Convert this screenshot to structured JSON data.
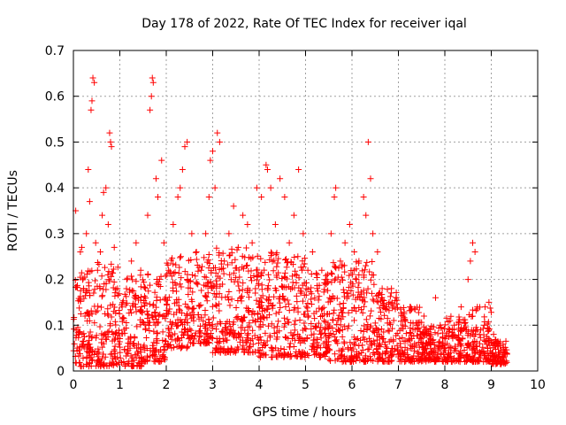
{
  "chart_data": {
    "type": "scatter",
    "title": "Day 178 of 2022, Rate Of TEC Index for receiver iqal",
    "xlabel": "GPS time / hours",
    "ylabel": "ROTI / TECUs",
    "xlim": [
      0,
      10
    ],
    "ylim": [
      0,
      0.7
    ],
    "xticks": [
      0,
      1,
      2,
      3,
      4,
      5,
      6,
      7,
      8,
      9,
      10
    ],
    "xtick_labels": [
      "0",
      "1",
      "2",
      "3",
      "4",
      "5",
      "6",
      "7",
      "8",
      "9",
      "10"
    ],
    "yticks": [
      0,
      0.1,
      0.2,
      0.3,
      0.4,
      0.5,
      0.6,
      0.7
    ],
    "ytick_labels": [
      "0",
      "0.1",
      "0.2",
      "0.3",
      "0.4",
      "0.5",
      "0.6",
      "0.7"
    ],
    "grid": true,
    "marker": "+",
    "color": "#ff0000",
    "points": [
      [
        0.05,
        0.35
      ],
      [
        0.08,
        0.05
      ],
      [
        0.12,
        0.08
      ],
      [
        0.15,
        0.26
      ],
      [
        0.18,
        0.27
      ],
      [
        0.22,
        0.18
      ],
      [
        0.25,
        0.12
      ],
      [
        0.28,
        0.3
      ],
      [
        0.32,
        0.44
      ],
      [
        0.35,
        0.37
      ],
      [
        0.38,
        0.57
      ],
      [
        0.4,
        0.59
      ],
      [
        0.42,
        0.64
      ],
      [
        0.45,
        0.63
      ],
      [
        0.48,
        0.28
      ],
      [
        0.52,
        0.22
      ],
      [
        0.58,
        0.26
      ],
      [
        0.62,
        0.34
      ],
      [
        0.65,
        0.39
      ],
      [
        0.7,
        0.4
      ],
      [
        0.75,
        0.32
      ],
      [
        0.78,
        0.52
      ],
      [
        0.8,
        0.5
      ],
      [
        0.82,
        0.49
      ],
      [
        0.88,
        0.27
      ],
      [
        0.95,
        0.18
      ],
      [
        1.05,
        0.14
      ],
      [
        1.15,
        0.2
      ],
      [
        1.25,
        0.24
      ],
      [
        1.35,
        0.28
      ],
      [
        1.45,
        0.22
      ],
      [
        1.55,
        0.18
      ],
      [
        1.6,
        0.34
      ],
      [
        1.65,
        0.57
      ],
      [
        1.68,
        0.6
      ],
      [
        1.7,
        0.64
      ],
      [
        1.72,
        0.63
      ],
      [
        1.78,
        0.42
      ],
      [
        1.82,
        0.38
      ],
      [
        1.9,
        0.46
      ],
      [
        1.95,
        0.28
      ],
      [
        2.05,
        0.22
      ],
      [
        2.15,
        0.32
      ],
      [
        2.25,
        0.38
      ],
      [
        2.3,
        0.4
      ],
      [
        2.35,
        0.44
      ],
      [
        2.4,
        0.49
      ],
      [
        2.45,
        0.5
      ],
      [
        2.55,
        0.3
      ],
      [
        2.65,
        0.26
      ],
      [
        2.75,
        0.22
      ],
      [
        2.85,
        0.3
      ],
      [
        2.92,
        0.38
      ],
      [
        2.95,
        0.46
      ],
      [
        3.0,
        0.48
      ],
      [
        3.05,
        0.4
      ],
      [
        3.1,
        0.52
      ],
      [
        3.15,
        0.5
      ],
      [
        3.25,
        0.24
      ],
      [
        3.35,
        0.3
      ],
      [
        3.45,
        0.36
      ],
      [
        3.55,
        0.27
      ],
      [
        3.65,
        0.34
      ],
      [
        3.75,
        0.32
      ],
      [
        3.85,
        0.28
      ],
      [
        3.95,
        0.4
      ],
      [
        4.05,
        0.38
      ],
      [
        4.15,
        0.45
      ],
      [
        4.18,
        0.44
      ],
      [
        4.25,
        0.4
      ],
      [
        4.35,
        0.32
      ],
      [
        4.45,
        0.42
      ],
      [
        4.55,
        0.38
      ],
      [
        4.65,
        0.28
      ],
      [
        4.75,
        0.34
      ],
      [
        4.85,
        0.44
      ],
      [
        4.95,
        0.3
      ],
      [
        5.05,
        0.22
      ],
      [
        5.15,
        0.26
      ],
      [
        5.25,
        0.18
      ],
      [
        5.35,
        0.22
      ],
      [
        5.45,
        0.2
      ],
      [
        5.55,
        0.3
      ],
      [
        5.62,
        0.38
      ],
      [
        5.65,
        0.4
      ],
      [
        5.75,
        0.24
      ],
      [
        5.85,
        0.28
      ],
      [
        5.95,
        0.32
      ],
      [
        6.05,
        0.26
      ],
      [
        6.15,
        0.24
      ],
      [
        6.25,
        0.38
      ],
      [
        6.3,
        0.34
      ],
      [
        6.35,
        0.5
      ],
      [
        6.4,
        0.42
      ],
      [
        6.45,
        0.3
      ],
      [
        6.55,
        0.26
      ],
      [
        6.65,
        0.18
      ],
      [
        6.75,
        0.14
      ],
      [
        6.85,
        0.18
      ],
      [
        6.95,
        0.16
      ],
      [
        7.1,
        0.12
      ],
      [
        7.25,
        0.14
      ],
      [
        7.4,
        0.1
      ],
      [
        7.55,
        0.12
      ],
      [
        7.7,
        0.08
      ],
      [
        7.8,
        0.16
      ],
      [
        7.9,
        0.1
      ],
      [
        8.05,
        0.06
      ],
      [
        8.2,
        0.1
      ],
      [
        8.35,
        0.14
      ],
      [
        8.5,
        0.2
      ],
      [
        8.55,
        0.24
      ],
      [
        8.6,
        0.28
      ],
      [
        8.65,
        0.26
      ],
      [
        8.7,
        0.14
      ],
      [
        8.85,
        0.1
      ],
      [
        8.95,
        0.15
      ],
      [
        9.05,
        0.08
      ],
      [
        9.15,
        0.06
      ],
      [
        9.3,
        0.04
      ]
    ],
    "density_bands": [
      [
        0.0,
        0.5,
        0.01,
        0.22
      ],
      [
        0.5,
        1.0,
        0.01,
        0.24
      ],
      [
        1.0,
        1.5,
        0.01,
        0.21
      ],
      [
        1.5,
        2.0,
        0.02,
        0.22
      ],
      [
        2.0,
        2.5,
        0.05,
        0.26
      ],
      [
        2.5,
        3.0,
        0.06,
        0.26
      ],
      [
        3.0,
        3.5,
        0.04,
        0.27
      ],
      [
        3.5,
        4.0,
        0.04,
        0.27
      ],
      [
        4.0,
        4.5,
        0.03,
        0.26
      ],
      [
        4.5,
        5.0,
        0.03,
        0.25
      ],
      [
        5.0,
        5.5,
        0.03,
        0.22
      ],
      [
        5.5,
        6.0,
        0.02,
        0.24
      ],
      [
        6.0,
        6.5,
        0.02,
        0.24
      ],
      [
        6.5,
        7.0,
        0.02,
        0.18
      ],
      [
        7.0,
        7.5,
        0.02,
        0.14
      ],
      [
        7.5,
        8.0,
        0.02,
        0.1
      ],
      [
        8.0,
        8.5,
        0.02,
        0.12
      ],
      [
        8.5,
        9.0,
        0.02,
        0.14
      ],
      [
        9.0,
        9.35,
        0.015,
        0.07
      ]
    ]
  }
}
